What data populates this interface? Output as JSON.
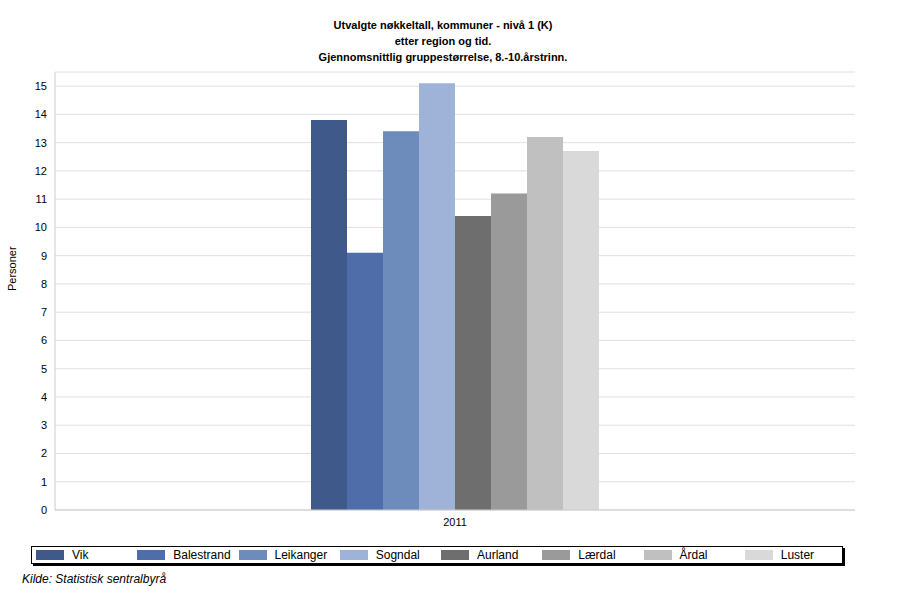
{
  "chart_data": {
    "type": "bar",
    "title": "Utvalgte nøkkeltall, kommuner - nivå 1 (K)",
    "subtitle": [
      "etter region og tid.",
      "Gjennomsnittlig gruppestørrelse, 8.-10.årstrinn."
    ],
    "y_label": "Personer",
    "annotations": [
      "Kilde: Statistisk sentralbyrå"
    ],
    "categories": [
      "2011"
    ],
    "series": [
      {
        "name": "Vik",
        "color": "#3f5a8a",
        "values": [
          13.8
        ]
      },
      {
        "name": "Balestrand",
        "color": "#4f6da8",
        "values": [
          9.1
        ]
      },
      {
        "name": "Leikanger",
        "color": "#6d8bbb",
        "values": [
          13.4
        ]
      },
      {
        "name": "Sogndal",
        "color": "#9fb3d8",
        "values": [
          15.1
        ]
      },
      {
        "name": "Aurland",
        "color": "#6e6e6e",
        "values": [
          10.4
        ]
      },
      {
        "name": "Lærdal",
        "color": "#9a9a9a",
        "values": [
          11.2
        ]
      },
      {
        "name": "Årdal",
        "color": "#c0c0c0",
        "values": [
          13.2
        ]
      },
      {
        "name": "Luster",
        "color": "#d9d9d9",
        "values": [
          12.7
        ]
      }
    ],
    "ylim": [
      0,
      15.5
    ],
    "yticks": [
      0,
      1,
      2,
      3,
      4,
      5,
      6,
      7,
      8,
      9,
      10,
      11,
      12,
      13,
      14,
      15
    ],
    "grid": true,
    "legend": "bottom"
  }
}
